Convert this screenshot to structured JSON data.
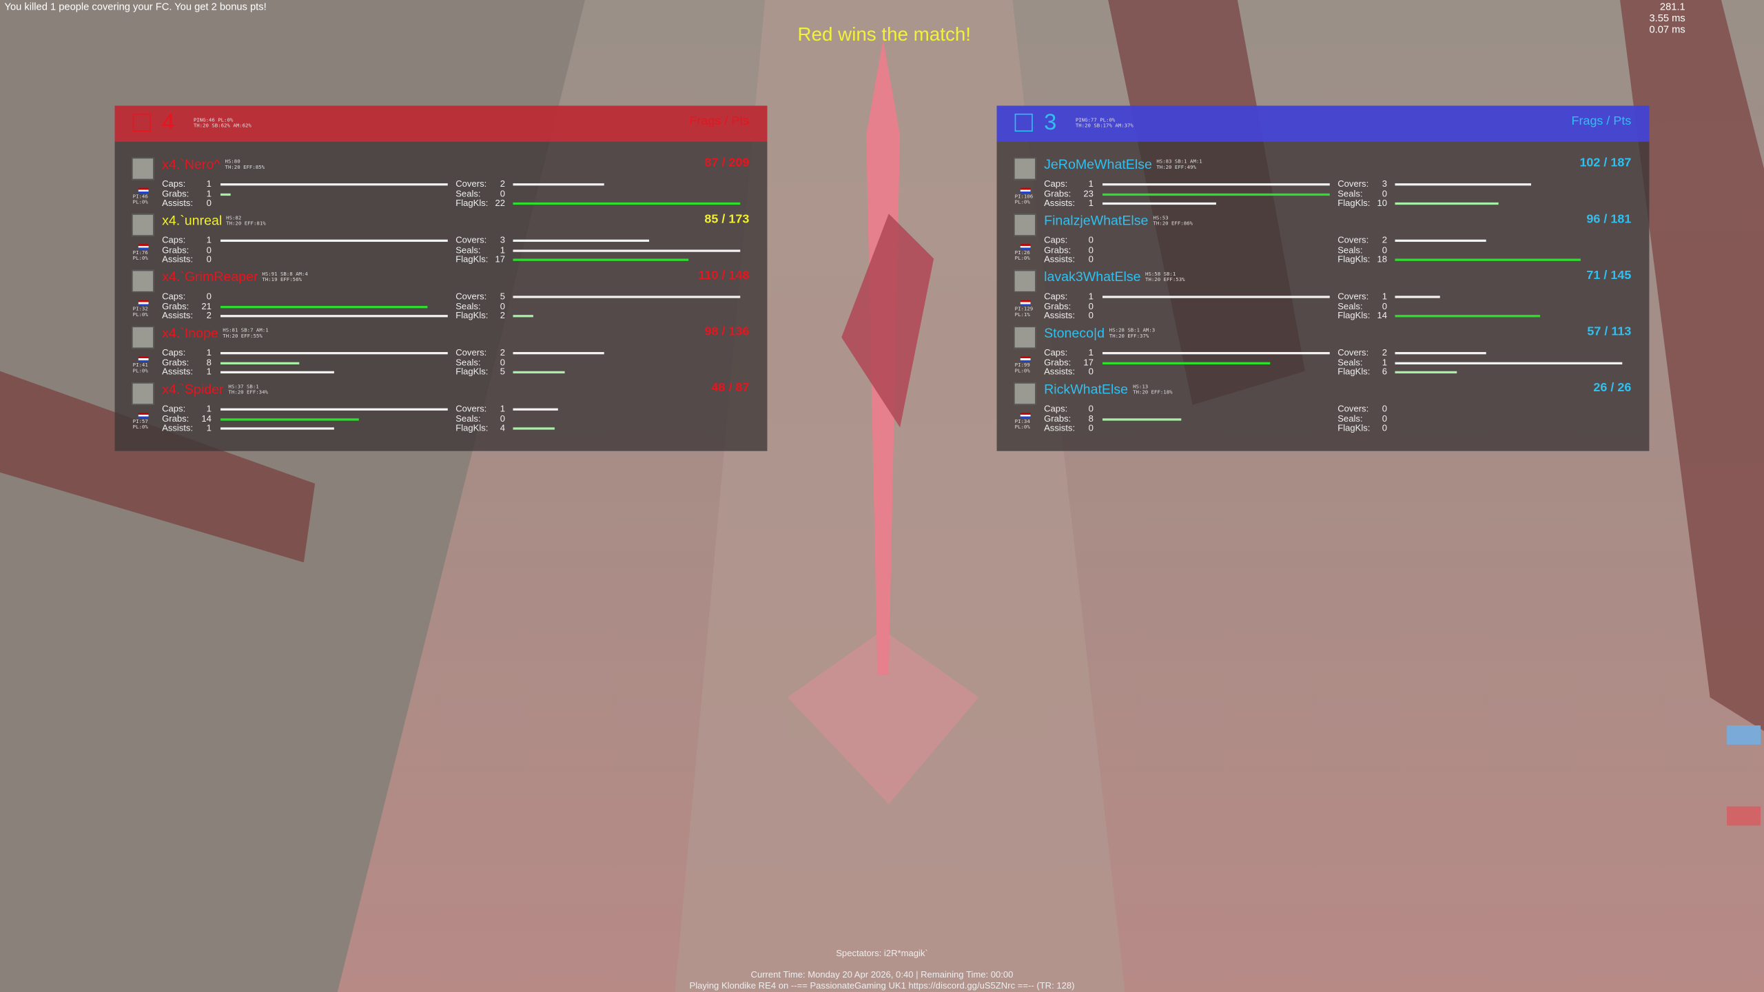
{
  "hud": {
    "kill_message": "You killed 1 people covering your FC. You get 2 bonus pts!",
    "perf": [
      "281.1",
      "3.55 ms",
      "0.07 ms"
    ],
    "banner": "Red wins the match!"
  },
  "stat_labels": {
    "caps": "Caps:",
    "grabs": "Grabs:",
    "assists": "Assists:",
    "covers": "Covers:",
    "seals": "Seals:",
    "flagkls": "FlagKls:"
  },
  "teams": [
    {
      "score": "4",
      "info": [
        "PING:46 PL:0%",
        "TH:20 SB:62% AM:62%"
      ],
      "header": "Frags / Pts",
      "color": "#e8141e",
      "players": [
        {
          "name": "x4.`Nero^",
          "small": [
            "HS:80",
            "TH:20 EFF:85%"
          ],
          "side": [
            "PI:46",
            "PL:0%"
          ],
          "score": "87 / 209",
          "stats": {
            "caps": 1,
            "grabs": 1,
            "assists": 0,
            "covers": 2,
            "seals": 0,
            "flagkls": 22
          }
        },
        {
          "name": "x4.`unreal",
          "color": "#f0f030",
          "small": [
            "HS:82",
            "TH:20 EFF:81%"
          ],
          "side": [
            "PI:76",
            "PL:0%"
          ],
          "score": "85 / 173",
          "stats": {
            "caps": 1,
            "grabs": 0,
            "assists": 0,
            "covers": 3,
            "seals": 1,
            "flagkls": 17
          }
        },
        {
          "name": "x4.`GrimReaper",
          "small": [
            "HS:91 SB:8 AM:4",
            "TH:19 EFF:56%"
          ],
          "side": [
            "PI:32",
            "PL:0%"
          ],
          "score": "110 / 148",
          "stats": {
            "caps": 0,
            "grabs": 21,
            "assists": 2,
            "covers": 5,
            "seals": 0,
            "flagkls": 2
          }
        },
        {
          "name": "x4.`Inope",
          "small": [
            "HS:81 SB:7 AM:1",
            "TH:20 EFF:55%"
          ],
          "side": [
            "PI:41",
            "PL:0%"
          ],
          "score": "98 / 136",
          "stats": {
            "caps": 1,
            "grabs": 8,
            "assists": 1,
            "covers": 2,
            "seals": 0,
            "flagkls": 5
          }
        },
        {
          "name": "x4.`Spider",
          "small": [
            "HS:37 SB:1",
            "TH:20 EFF:34%"
          ],
          "side": [
            "PI:57",
            "PL:0%"
          ],
          "score": "48 / 87",
          "stats": {
            "caps": 1,
            "grabs": 14,
            "assists": 1,
            "covers": 1,
            "seals": 0,
            "flagkls": 4
          }
        }
      ]
    },
    {
      "score": "3",
      "info": [
        "PING:77 PL:0%",
        "TH:20 SB:17% AM:37%"
      ],
      "header": "Frags / Pts",
      "color": "#30c0f0",
      "players": [
        {
          "name": "JeRoMeWhatElse",
          "small": [
            "HS:83 SB:1 AM:1",
            "TH:20 EFF:49%"
          ],
          "side": [
            "PI:106",
            "PL:0%"
          ],
          "score": "102 / 187",
          "stats": {
            "caps": 1,
            "grabs": 23,
            "assists": 1,
            "covers": 3,
            "seals": 0,
            "flagkls": 10
          }
        },
        {
          "name": "FinalzjeWhatElse",
          "small": [
            "HS:53",
            "TH:20 EFF:86%"
          ],
          "side": [
            "PI:26",
            "PL:0%"
          ],
          "score": "96 / 181",
          "stats": {
            "caps": 0,
            "grabs": 0,
            "assists": 0,
            "covers": 2,
            "seals": 0,
            "flagkls": 18
          }
        },
        {
          "name": "lavak3WhatElse",
          "small": [
            "HS:58 SB:1",
            "TH:20 EFF:53%"
          ],
          "side": [
            "PI:129",
            "PL:1%"
          ],
          "score": "71 / 145",
          "stats": {
            "caps": 1,
            "grabs": 0,
            "assists": 0,
            "covers": 1,
            "seals": 0,
            "flagkls": 14
          }
        },
        {
          "name": "Stoneco|d",
          "small": [
            "HS:28 SB:1 AM:3",
            "TH:20 EFF:37%"
          ],
          "side": [
            "PI:99",
            "PL:0%"
          ],
          "score": "57 / 113",
          "stats": {
            "caps": 1,
            "grabs": 17,
            "assists": 0,
            "covers": 2,
            "seals": 1,
            "flagkls": 6
          }
        },
        {
          "name": "RickWhatElse",
          "small": [
            "HS:13",
            "TH:20 EFF:18%"
          ],
          "side": [
            "PI:34",
            "PL:0%"
          ],
          "score": "26 / 26",
          "stats": {
            "caps": 0,
            "grabs": 8,
            "assists": 0,
            "covers": 0,
            "seals": 0,
            "flagkls": 0
          }
        }
      ]
    }
  ],
  "footer": {
    "spectators": "Spectators: i2R*magik`",
    "time": "Current Time: Monday 20 Apr 2026, 0:40 | Remaining Time: 00:00",
    "server": "Playing Klondike RE4 on --== PassionateGaming UK1 https://discord.gg/uS5ZNrc ==-- (TR: 128)"
  }
}
